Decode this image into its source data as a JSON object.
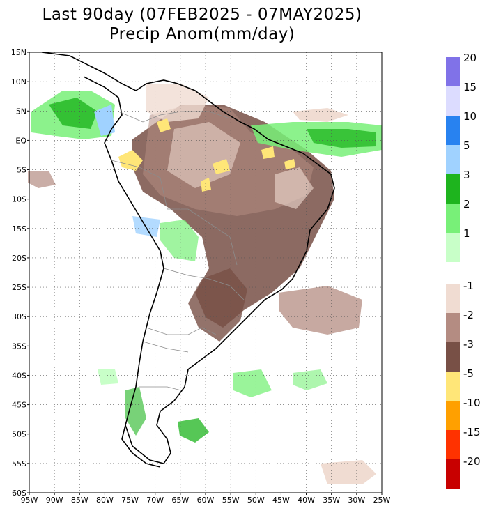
{
  "title_line1": "Last 90day (07FEB2025 - 07MAY2025)",
  "title_line2": "Precip Anom(mm/day)",
  "lat_labels": [
    "15N",
    "10N",
    "5N",
    "EQ",
    "5S",
    "10S",
    "15S",
    "20S",
    "25S",
    "30S",
    "35S",
    "40S",
    "45S",
    "50S",
    "55S",
    "60S"
  ],
  "lon_labels": [
    "95W",
    "90W",
    "85W",
    "80W",
    "75W",
    "70W",
    "65W",
    "60W",
    "55W",
    "50W",
    "45W",
    "40W",
    "35W",
    "30W",
    "25W"
  ],
  "colorbar_wet": {
    "colors": [
      "#8072e8",
      "#dcdcff",
      "#2882f0",
      "#a0d2ff",
      "#1eb41e",
      "#78f078",
      "#c8ffc8"
    ],
    "labels": [
      "20",
      "15",
      "10",
      "5",
      "3",
      "2",
      "1"
    ]
  },
  "colorbar_dry": {
    "colors": [
      "#f0dcd2",
      "#b48c82",
      "#785046",
      "#ffe678",
      "#ffa000",
      "#ff3200",
      "#c80000"
    ],
    "labels": [
      "-1",
      "-2",
      "-3",
      "-5",
      "-10",
      "-15",
      "-20"
    ]
  }
}
